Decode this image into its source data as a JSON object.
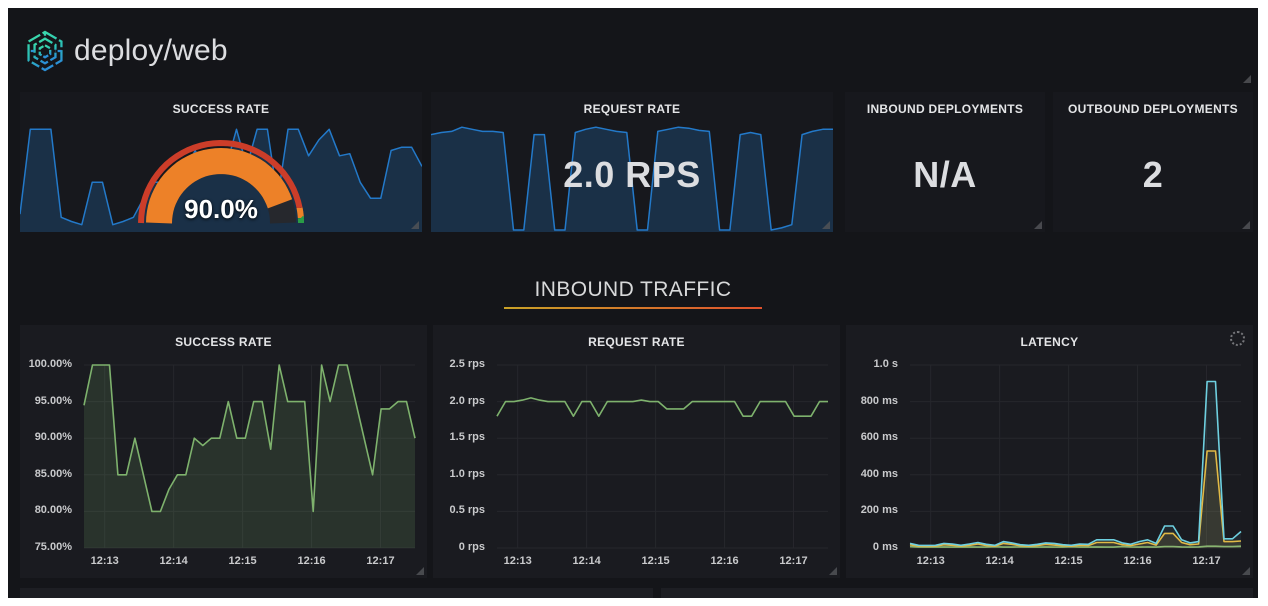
{
  "header": {
    "title": "deploy/web"
  },
  "stats": {
    "success_rate": {
      "title": "SUCCESS RATE",
      "value_display": "90.0%",
      "gauge": {
        "min": 0,
        "max": 100,
        "value": 90,
        "value_color": "#ed8128",
        "track_color": "#26282d",
        "thresholds": [
          {
            "up_to": 94,
            "color": "#cc3d29"
          },
          {
            "up_to": 98,
            "color": "#ed8128"
          },
          {
            "up_to": 100,
            "color": "#299c46"
          }
        ]
      }
    },
    "request_rate": {
      "title": "REQUEST RATE",
      "value_display": "2.0 RPS"
    },
    "inbound_deployments": {
      "title": "INBOUND DEPLOYMENTS",
      "value_display": "N/A"
    },
    "outbound_deployments": {
      "title": "OUTBOUND DEPLOYMENTS",
      "value_display": "2"
    }
  },
  "section_header": {
    "title": "INBOUND TRAFFIC"
  },
  "colors": {
    "sparkline_blue": "#2379c9",
    "graph_green": "#7eb26d",
    "latency_cyan": "#6ed0e0",
    "latency_yellow": "#eab839",
    "gauge_orange": "#ed8128",
    "threshold_red": "#cc3d29",
    "threshold_green": "#299c46"
  },
  "chart_data": [
    {
      "id": "success-rate-sparkline",
      "type": "sparkline",
      "color": "#2379c9",
      "fill_opacity": 0.25,
      "values": [
        0.15,
        0.95,
        0.95,
        0.95,
        0.12,
        0.08,
        0.05,
        0.45,
        0.45,
        0.05,
        0.08,
        0.12,
        0.3,
        0.45,
        0.45,
        0.42,
        0.55,
        0.75,
        0.55,
        0.75,
        0.6,
        0.95,
        0.6,
        0.95,
        0.95,
        0.3,
        0.95,
        0.95,
        0.7,
        0.85,
        0.95,
        0.7,
        0.72,
        0.45,
        0.3,
        0.3,
        0.75,
        0.78,
        0.78,
        0.6
      ]
    },
    {
      "id": "request-rate-sparkline",
      "type": "sparkline",
      "color": "#2379c9",
      "fill_opacity": 0.25,
      "values": [
        0.9,
        0.92,
        0.93,
        0.97,
        0.95,
        0.93,
        0.93,
        0.92,
        0,
        0,
        0.9,
        0.9,
        0,
        0,
        0.92,
        0.95,
        0.97,
        0.95,
        0.93,
        0.92,
        0,
        0,
        0.93,
        0.95,
        0.97,
        0.96,
        0.94,
        0.93,
        0,
        0,
        0.9,
        0.92,
        0.9,
        0,
        0.02,
        0.05,
        0.9,
        0.93,
        0.95,
        0.95
      ]
    },
    {
      "id": "success-rate-graph",
      "type": "line",
      "title": "SUCCESS RATE",
      "ylim": [
        75,
        100
      ],
      "yticks": [
        "75.00%",
        "80.00%",
        "85.00%",
        "90.00%",
        "95.00%",
        "100.00%"
      ],
      "xticks": [
        {
          "label": "12:13",
          "f": 0.0625
        },
        {
          "label": "12:14",
          "f": 0.2708
        },
        {
          "label": "12:15",
          "f": 0.4792
        },
        {
          "label": "12:16",
          "f": 0.6875
        },
        {
          "label": "12:17",
          "f": 0.8958
        }
      ],
      "series": [
        {
          "color": "#7eb26d",
          "fill_opacity": 0.16,
          "values": [
            94.5,
            100,
            100,
            100,
            85,
            85,
            90,
            85,
            80,
            80,
            83,
            85,
            85,
            90,
            89,
            90,
            90,
            95,
            90,
            90,
            95,
            95,
            88.5,
            100,
            95,
            95,
            95,
            80,
            100,
            95,
            100,
            100,
            95,
            90,
            85,
            94,
            94,
            95,
            95,
            90
          ]
        }
      ]
    },
    {
      "id": "request-rate-graph",
      "type": "line",
      "title": "REQUEST RATE",
      "ylim": [
        0,
        2.5
      ],
      "yticks": [
        "0 rps",
        "0.5 rps",
        "1.0 rps",
        "1.5 rps",
        "2.0 rps",
        "2.5 rps"
      ],
      "xticks": [
        {
          "label": "12:13",
          "f": 0.0625
        },
        {
          "label": "12:14",
          "f": 0.2708
        },
        {
          "label": "12:15",
          "f": 0.4792
        },
        {
          "label": "12:16",
          "f": 0.6875
        },
        {
          "label": "12:17",
          "f": 0.8958
        }
      ],
      "series": [
        {
          "color": "#7eb26d",
          "fill_opacity": 0,
          "values": [
            1.8,
            2,
            2,
            2.02,
            2.05,
            2.02,
            2,
            2,
            2,
            1.8,
            2,
            2,
            1.8,
            2,
            2,
            2,
            2,
            2.02,
            2,
            2,
            1.9,
            1.9,
            1.9,
            2,
            2,
            2,
            2,
            2,
            2,
            1.8,
            1.8,
            2,
            2,
            2,
            2,
            1.8,
            1.8,
            1.8,
            2,
            2
          ]
        }
      ]
    },
    {
      "id": "latency-graph",
      "type": "line",
      "title": "LATENCY",
      "ylim": [
        0,
        1000
      ],
      "yticks": [
        "0 ms",
        "200 ms",
        "400 ms",
        "600 ms",
        "800 ms",
        "1.0 s"
      ],
      "xticks": [
        {
          "label": "12:13",
          "f": 0.0625
        },
        {
          "label": "12:14",
          "f": 0.2708
        },
        {
          "label": "12:15",
          "f": 0.4792
        },
        {
          "label": "12:16",
          "f": 0.6875
        },
        {
          "label": "12:17",
          "f": 0.8958
        }
      ],
      "series": [
        {
          "color": "#7eb26d",
          "fill_opacity": 0.1,
          "values": [
            8,
            5,
            5,
            5,
            6,
            5,
            5,
            6,
            5,
            5,
            7,
            5,
            5,
            6,
            5,
            5,
            6,
            5,
            5,
            7,
            5,
            5,
            6,
            5,
            5,
            8,
            6,
            5,
            6,
            5,
            8,
            8,
            6,
            5,
            6,
            10,
            10,
            8,
            8,
            10
          ]
        },
        {
          "color": "#eab839",
          "fill_opacity": 0.12,
          "values": [
            18,
            10,
            9,
            10,
            18,
            15,
            10,
            15,
            22,
            13,
            10,
            25,
            20,
            12,
            10,
            13,
            20,
            16,
            12,
            10,
            15,
            13,
            30,
            30,
            30,
            18,
            13,
            22,
            30,
            16,
            80,
            80,
            30,
            18,
            22,
            530,
            530,
            35,
            35,
            38
          ]
        },
        {
          "color": "#6ed0e0",
          "fill_opacity": 0.08,
          "values": [
            25,
            15,
            14,
            15,
            25,
            22,
            15,
            22,
            30,
            20,
            15,
            35,
            28,
            18,
            15,
            20,
            28,
            25,
            18,
            15,
            22,
            20,
            45,
            45,
            45,
            28,
            20,
            35,
            45,
            25,
            120,
            120,
            45,
            28,
            35,
            910,
            910,
            50,
            50,
            90
          ]
        }
      ]
    }
  ]
}
